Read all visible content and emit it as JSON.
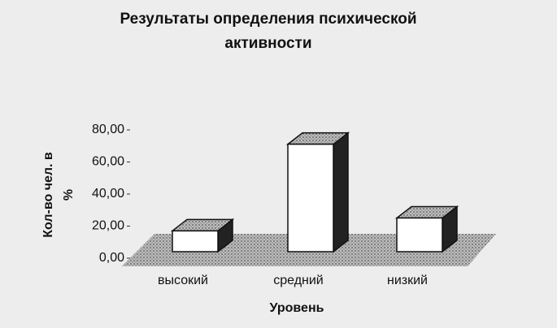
{
  "chart_data": {
    "type": "bar3d",
    "title": [
      "Результаты определения психической",
      "активности"
    ],
    "xlabel": "Уровень",
    "ylabel": [
      "Кол-во чел. в",
      "%"
    ],
    "categories": [
      "высокий",
      "средний",
      "низкий"
    ],
    "values": [
      13,
      67,
      21
    ],
    "ylim": [
      0,
      80
    ],
    "yticks": [
      {
        "value": 0,
        "label": "0,00"
      },
      {
        "value": 20,
        "label": "20,00"
      },
      {
        "value": 40,
        "label": "40,00"
      },
      {
        "value": 60,
        "label": "60,00"
      },
      {
        "value": 80,
        "label": "80,00"
      }
    ],
    "color": "#ffffff"
  }
}
